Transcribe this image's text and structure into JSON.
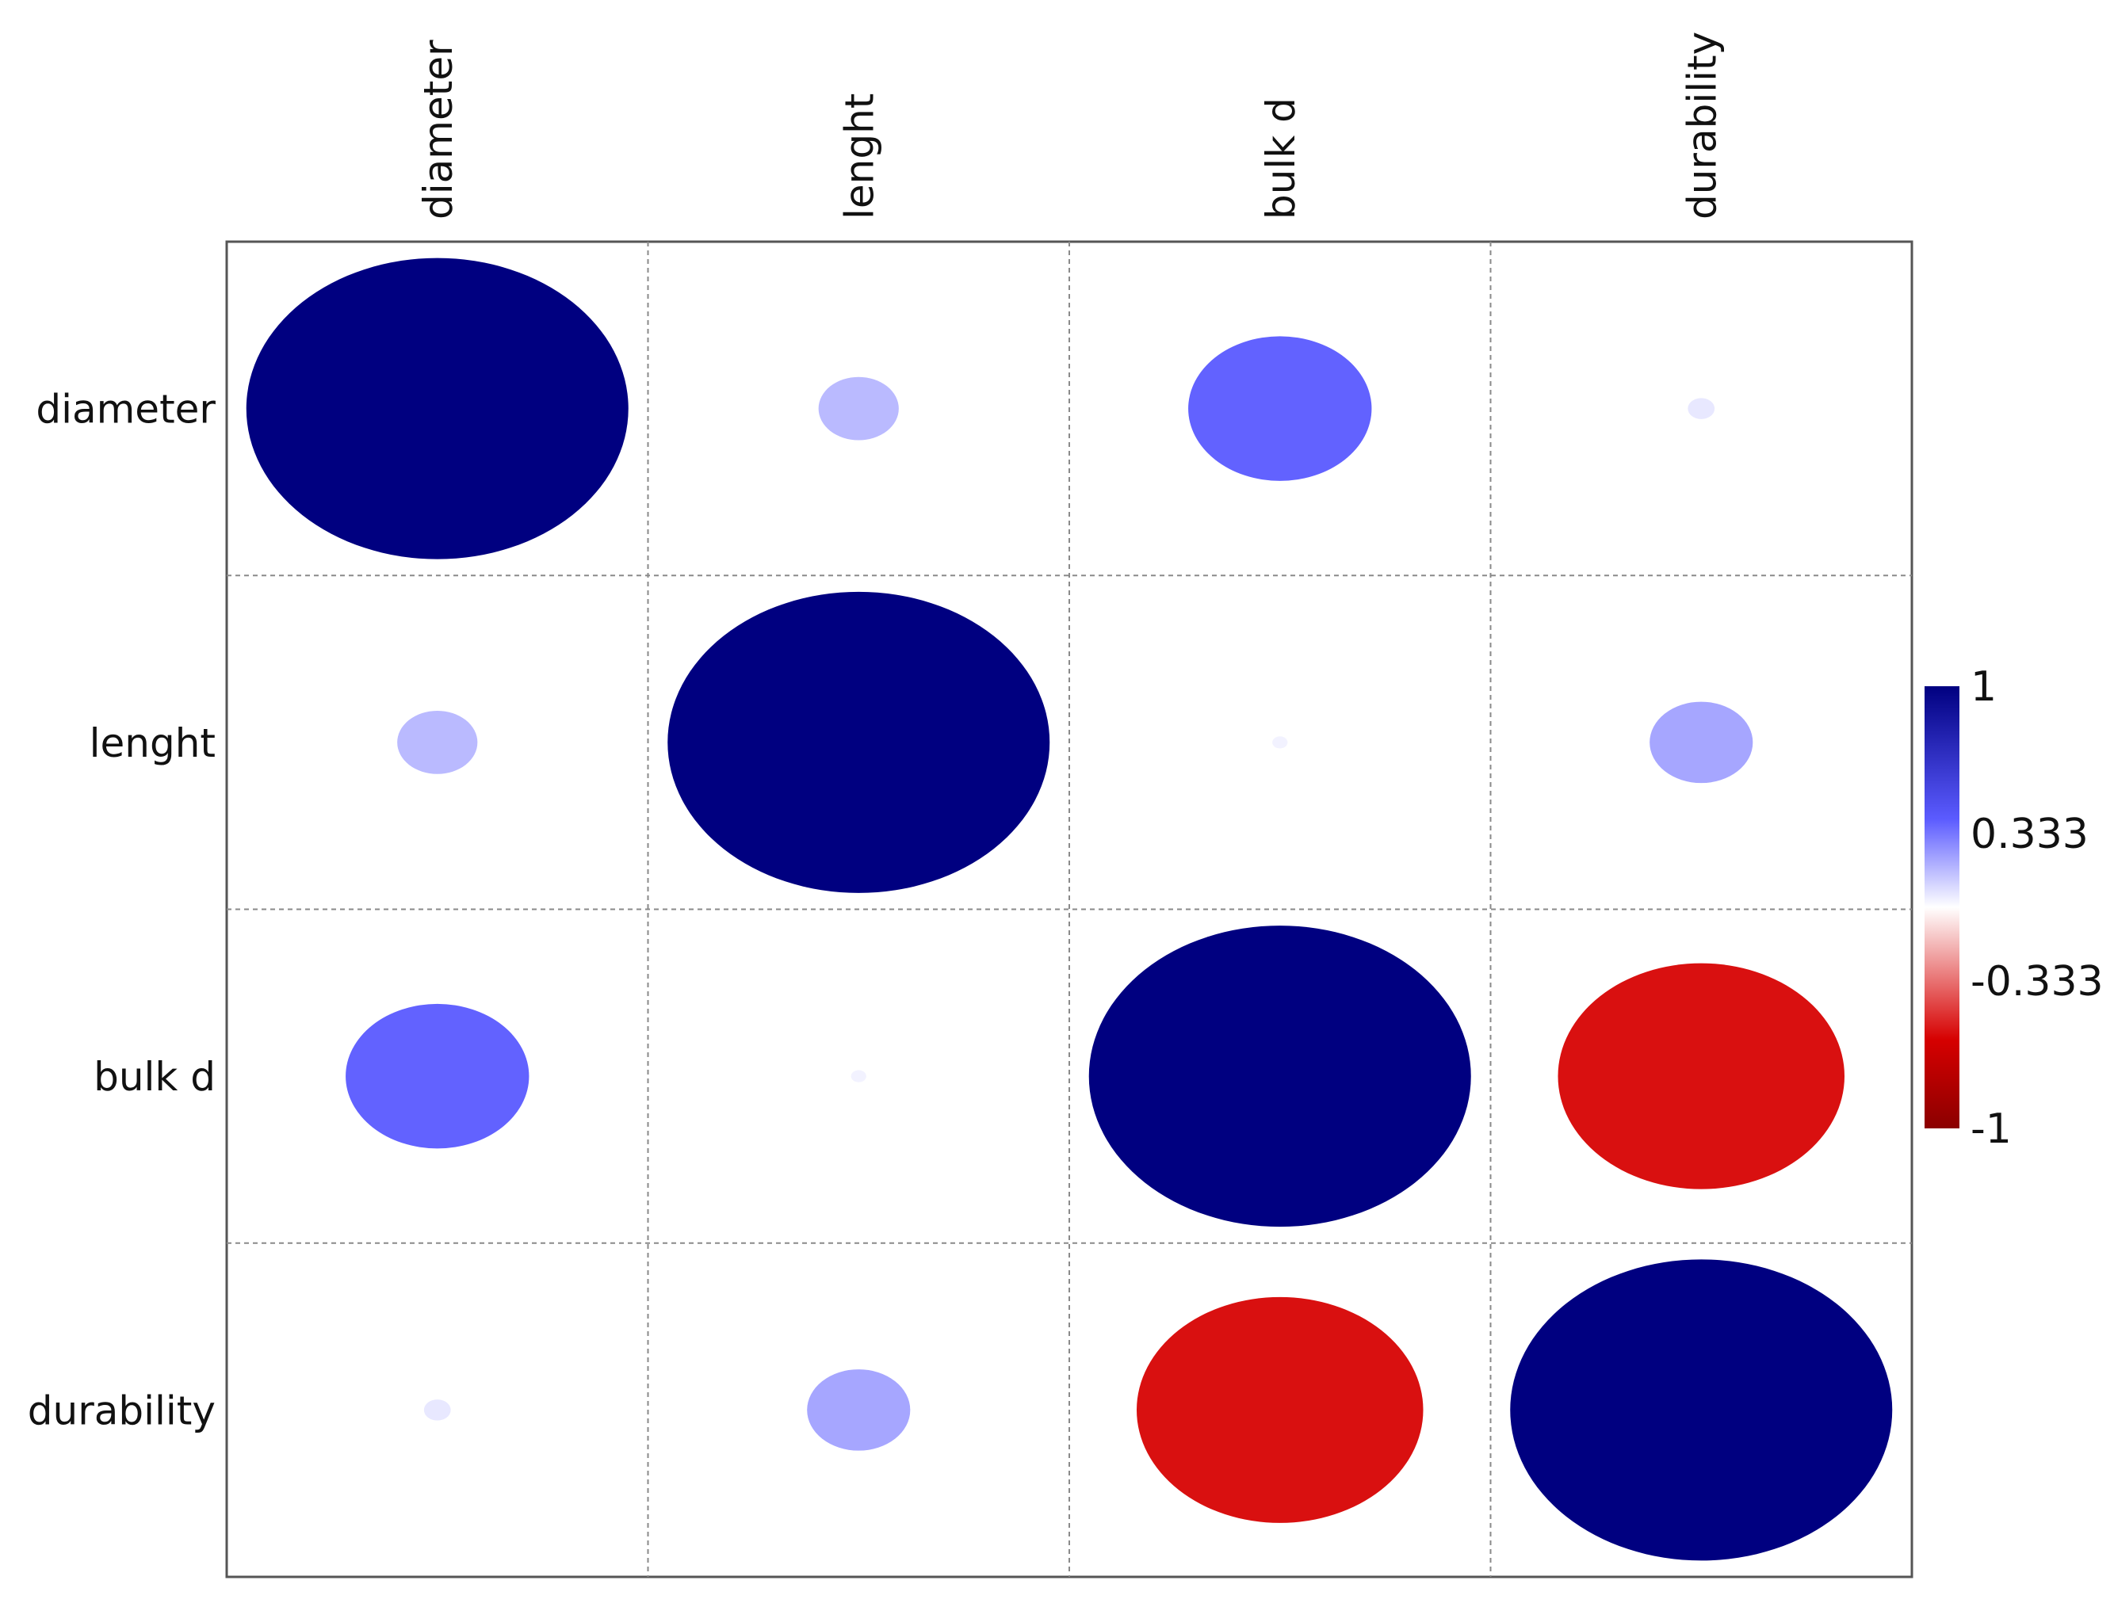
{
  "chart_data": {
    "type": "heatmap",
    "style": "correlation-ellipse-matrix",
    "variables": [
      "diameter",
      "lenght",
      "bulk d",
      "durability"
    ],
    "matrix": [
      [
        1.0,
        0.21,
        0.48,
        0.07
      ],
      [
        0.21,
        1.0,
        0.04,
        0.27
      ],
      [
        0.48,
        0.04,
        1.0,
        -0.75
      ],
      [
        0.07,
        0.27,
        -0.75,
        1.0
      ]
    ],
    "colorbar": {
      "range": [
        -1,
        1
      ],
      "tick_labels": [
        "1",
        "0.333",
        "-0.333",
        "-1"
      ],
      "tick_values": [
        1,
        0.333,
        -0.333,
        -1
      ]
    },
    "colors": {
      "strong_positive": "#000080",
      "positive": "#5b5bff",
      "zero": "#ffffff",
      "negative": "#d60000",
      "strong_negative": "#8b0000"
    },
    "grid": true,
    "grid_style": "dashed"
  }
}
